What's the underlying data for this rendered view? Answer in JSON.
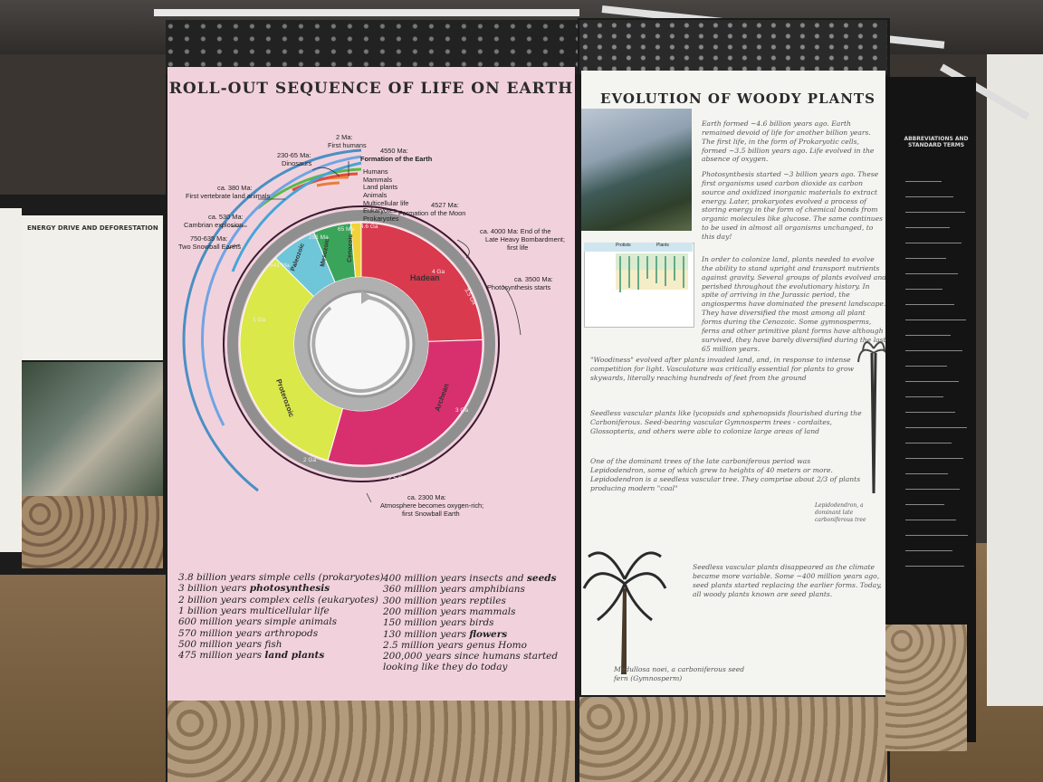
{
  "main_panel": {
    "title": "ROLL-OUT SEQUENCE OF LIFE ON EARTH",
    "timeline_labels": {
      "first_humans_age": "2 Ma:",
      "first_humans": "First humans",
      "dinosaurs_age": "230-65 Ma:",
      "dinosaurs": "Dinosaurs",
      "formation_age": "4550 Ma:",
      "formation": "Formation of the Earth",
      "vertebrate_age": "ca. 380 Ma:",
      "vertebrate": "First vertebrate land animals",
      "cambrian_age": "ca. 530 Ma:",
      "cambrian": "Cambrian explosion",
      "snowball_age": "750-635 Ma:",
      "snowball": "Two Snowball Earths",
      "moon_age": "4527 Ma:",
      "moon": "Formation of the Moon",
      "bombardment_age": "ca. 4000 Ma: End of the",
      "bombardment_line2": "Late Heavy Bombardment;",
      "bombardment_line3": "first life",
      "photosynthesis_age": "ca. 3500 Ma:",
      "photosynthesis": "Photosynthesis starts",
      "oxygen_age": "ca. 2300 Ma:",
      "oxygen_line1": "Atmosphere becomes oxygen-rich;",
      "oxygen_line2": "first Snowball Earth"
    },
    "legend": [
      "Humans",
      "Mammals",
      "Land plants",
      "Animals",
      "Multicellular life",
      "Eukaryotes",
      "Prokaryotes"
    ],
    "eons": {
      "hadean": "Hadean",
      "archean": "Archean",
      "proterozoic": "Proterozoic",
      "paleozoic": "Paleozoic",
      "mesozoic": "Mesozoic",
      "cenozoic": "Cenozoic"
    },
    "ring_ticks": {
      "t46": "4.6 Ga",
      "t4": "4 Ga",
      "t3": "3 Ga",
      "t25": "2.5 Ga",
      "t2": "2 Ga",
      "t1": "1 Ga",
      "t541": "541 Ma",
      "t251": "251 Ma",
      "t65": "65 Ma",
      "t35": "3.5 Ga"
    },
    "facts_left": [
      {
        "text": "3.8 billion years simple cells (prokaryotes)",
        "emph": ""
      },
      {
        "text": "3 billion years ",
        "emph": "photosynthesis"
      },
      {
        "text": "2 billion years complex cells (eukaryotes)",
        "emph": ""
      },
      {
        "text": "1 billion years multicellular life",
        "emph": ""
      },
      {
        "text": "600 million years simple animals",
        "emph": ""
      },
      {
        "text": "570 million years arthropods",
        "emph": ""
      },
      {
        "text": "500 million years fish",
        "emph": ""
      },
      {
        "text": "475 million years ",
        "emph": "land plants"
      }
    ],
    "facts_right": [
      {
        "text": "400 million years insects and ",
        "emph": "seeds"
      },
      {
        "text": "360 million years amphibians",
        "emph": ""
      },
      {
        "text": "300 million years reptiles",
        "emph": ""
      },
      {
        "text": "200 million years mammals",
        "emph": ""
      },
      {
        "text": "150 million years birds",
        "emph": ""
      },
      {
        "text": "130 million years ",
        "emph": "flowers"
      },
      {
        "text": "2.5 million years  genus Homo",
        "emph": ""
      },
      {
        "text": "200,000 years since humans started",
        "emph": ""
      },
      {
        "text": "looking like they do today",
        "emph": ""
      }
    ],
    "colors": {
      "hadean": "#d93a4e",
      "archean": "#d8306f",
      "proterozoic": "#dbe84a",
      "paleozoic": "#6fc6d8",
      "mesozoic": "#3aa55a",
      "cenozoic": "#f2d23a"
    }
  },
  "right_panel": {
    "title": "EVOLUTION OF WOODY PLANTS",
    "para1": "Earth formed ~4.6 billion years ago. Earth remained devoid of life for another billion years. The first life, in the form of Prokaryotic cells, formed ~3.5 billion years ago. Life evolved in the absence of oxygen.",
    "para2": "Photosynthesis started ~3 billion years ago. These first organisms used carbon dioxide as carbon source and oxidized inorganic materials to extract energy. Later, prokaryotes evolved a process of storing energy in the form of chemical bonds from organic molecules like glucose. The same continues to be used in almost all organisms unchanged, to this day!",
    "para3": "In order to colonize land, plants needed to evolve the ability to stand upright and transport nutrients against gravity. Several groups of plants evolved and perished throughout the evolutionary history. In spite of arriving in the Jurassic period, the angiosperms have dominated the present landscape. They have diversified the most among all plant forms during the Cenozoic. Some gymnosperms, ferns and other primitive plant forms have although survived, they have barely diversified during the last 65 million years.",
    "para4": "\"Woodiness\" evolved after plants invaded land, and, in response to intense competition for light. Vasculature was critically essential for plants to grow skywards, literally reaching hundreds of feet from the ground",
    "para5": "Seedless vascular plants like lycopsids and sphenopsids flourished during the Carboniferous. Seed-bearing vascular Gymnosperm trees - cordaites, Glossopteris, and others were able to colonize large areas of land",
    "para6": "One of the dominant trees of the late carboniferous period was Lepidodendron, some of which grew to heights of 40 meters or more. Lepidodendron is a seedless vascular tree.  They comprise about 2/3 of plants producing modern \"coal\"",
    "tree_caption": "Lepidodendron, a dominant late carboniferous tree",
    "para7": "Seedless vascular plants disappeared as the climate became more variable. Some ~400 million years ago, seed plants started replacing the earlier forms.  Today, all woody plants known are seed plants.",
    "fern_caption": "Medullosa noei, a carboniferous seed fern (Gymnosperm)",
    "chart_header_left": "Protists",
    "chart_header_right": "Plants"
  },
  "left_panel": {
    "title": "ENERGY DRIVE AND DEFORESTATION"
  },
  "far_right_panel": {
    "title": "ABBREVIATIONS AND STANDARD TERMS"
  }
}
